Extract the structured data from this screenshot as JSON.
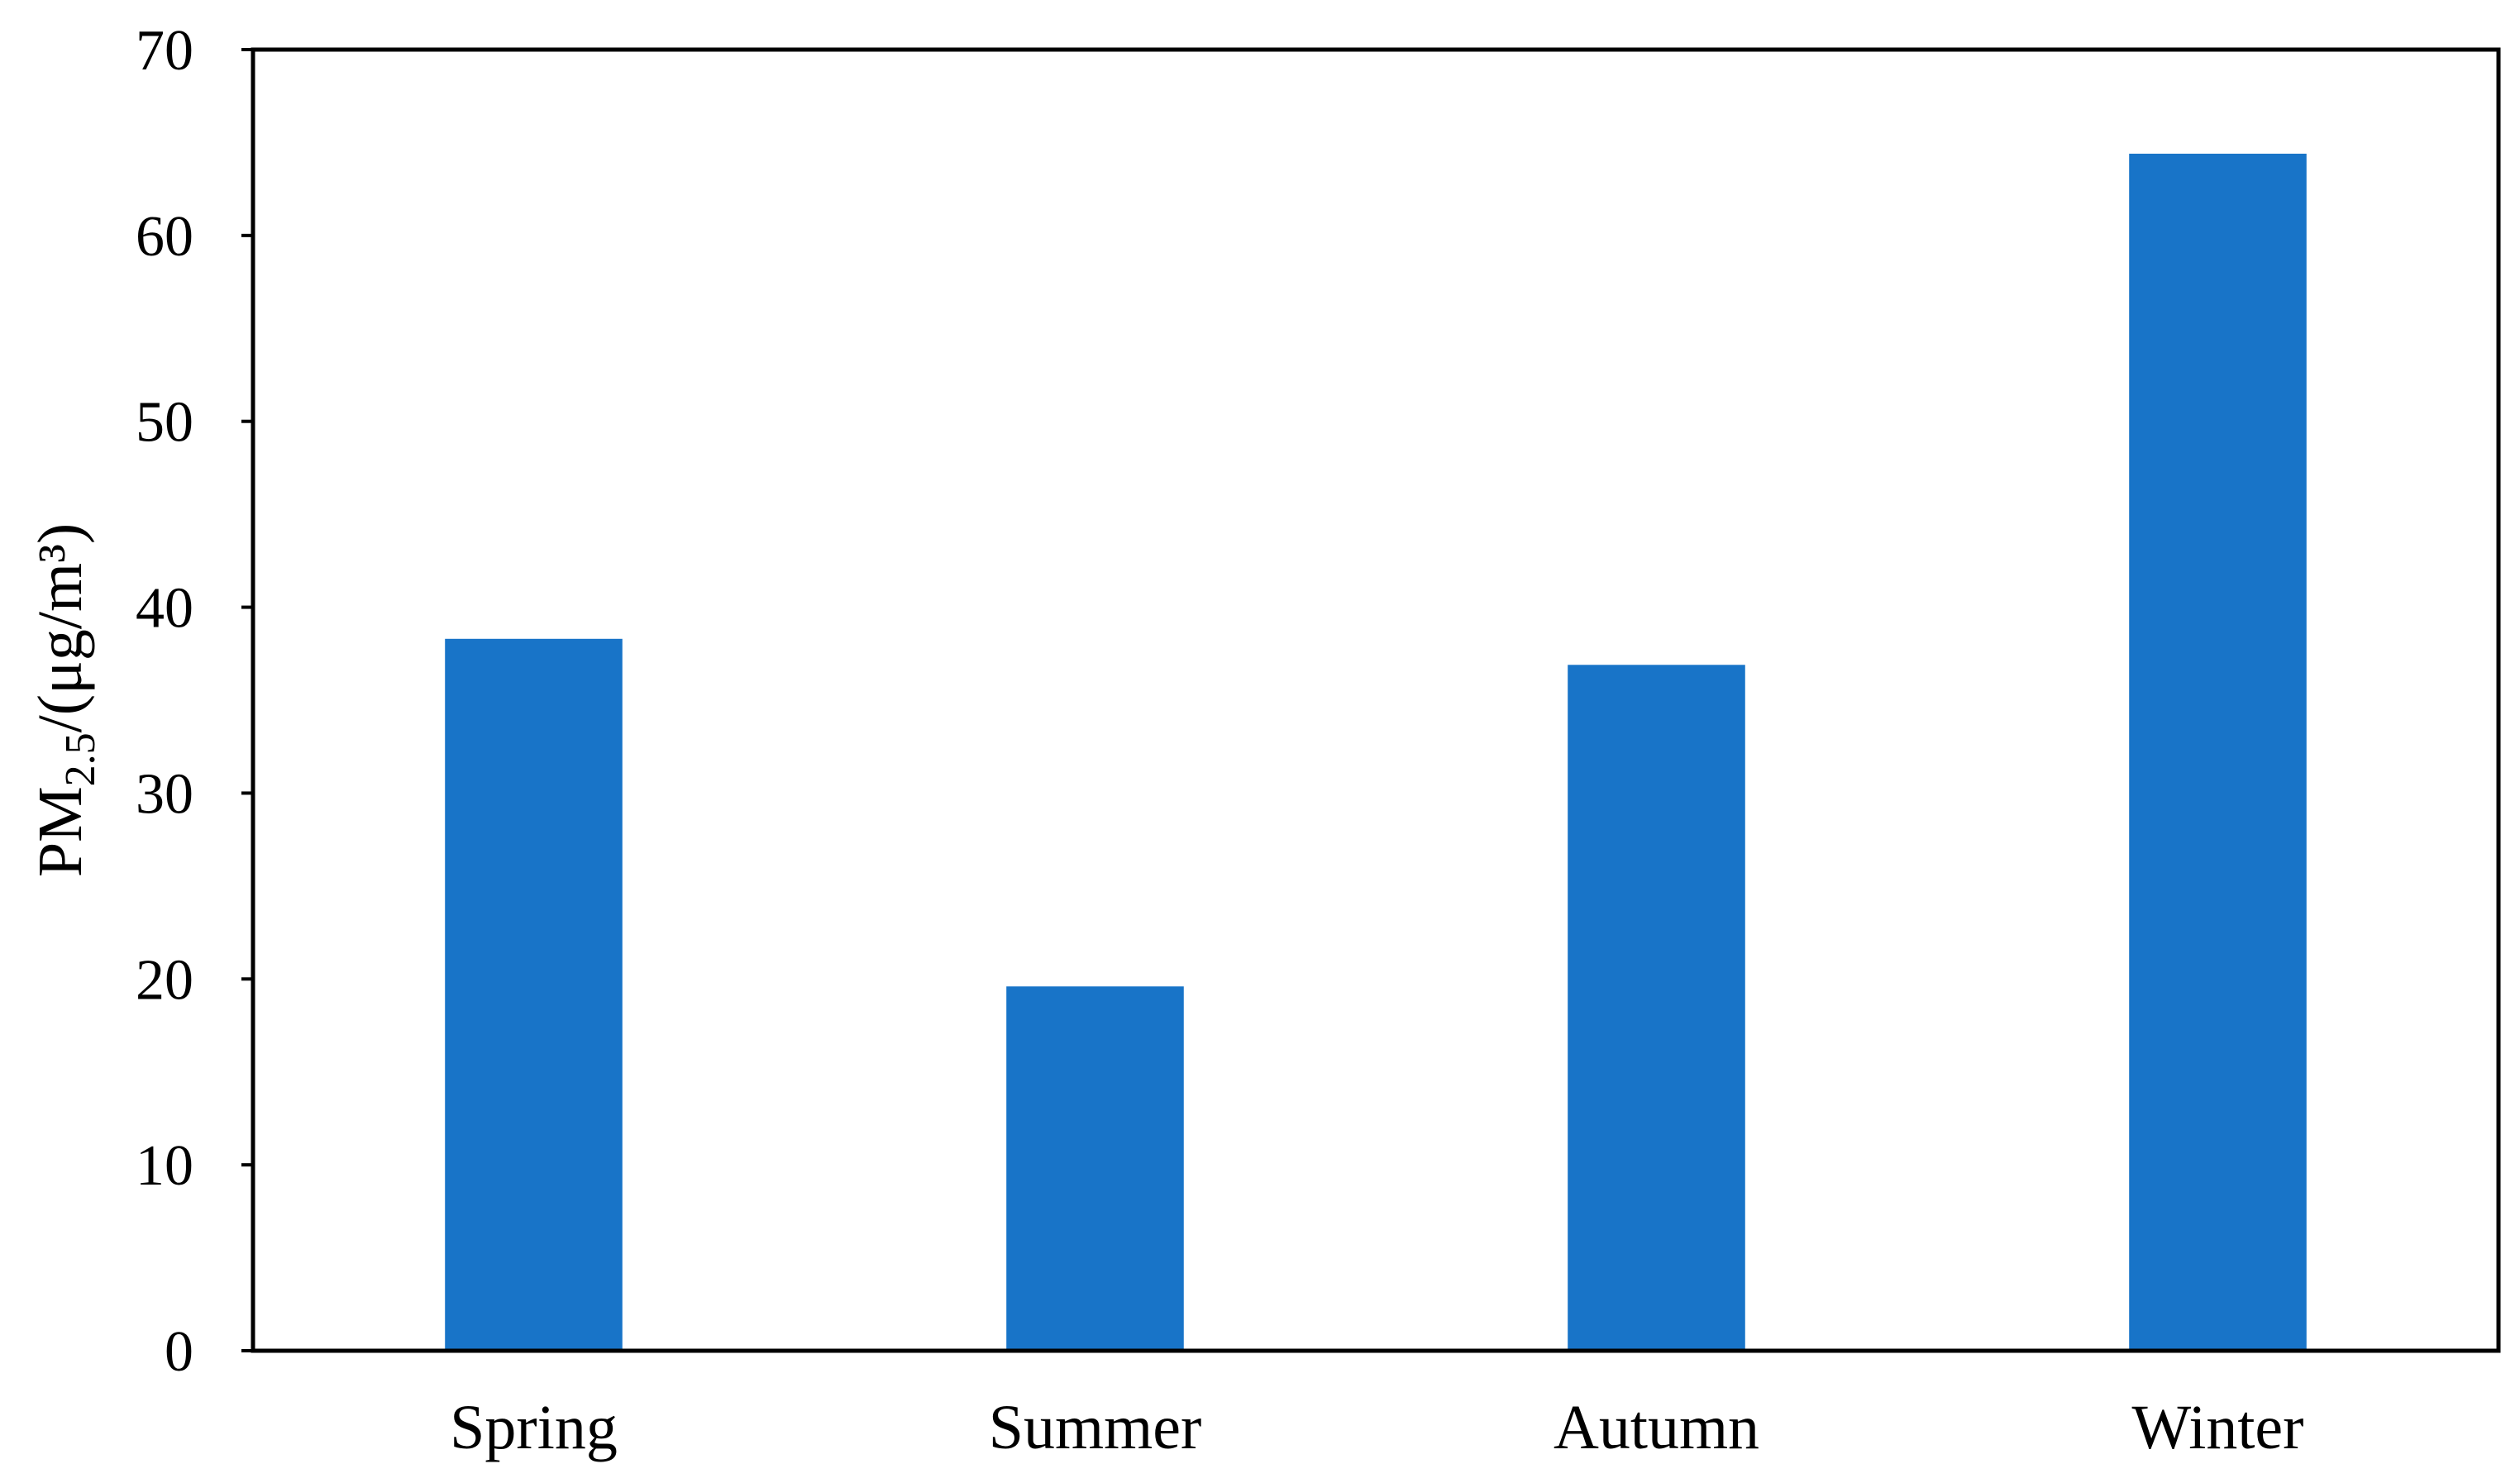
{
  "chart_data": {
    "type": "bar",
    "categories": [
      "Spring",
      "Summer",
      "Autumn",
      "Winter"
    ],
    "values": [
      38.3,
      19.6,
      36.9,
      64.4
    ],
    "ylabel": {
      "prefix": "PM",
      "subscript": "2.5",
      "suffix": "/(μg/m³)"
    },
    "xlabel": "",
    "ylim": [
      0,
      70
    ],
    "yticks": [
      0,
      10,
      20,
      30,
      40,
      50,
      60,
      70
    ],
    "bar_color": "#1874C8",
    "grid": false,
    "legend": "none"
  }
}
